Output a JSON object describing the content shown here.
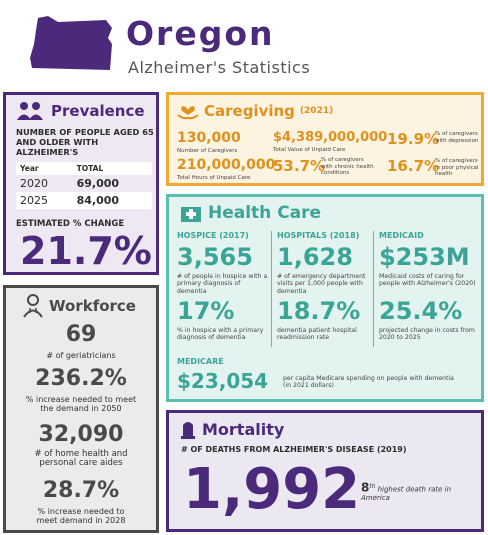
{
  "header": {
    "title": "Oregon",
    "subtitle": "Alzheimer's Statistics",
    "icon": "oregon-state-silhouette",
    "accent": "#4b2a7b"
  },
  "prevalence": {
    "title": "Prevalence",
    "icon": "people-icon",
    "description": "NUMBER OF PEOPLE AGED 65 AND OLDER WITH ALZHEIMER'S",
    "table": {
      "col1": "Year",
      "col2": "TOTAL",
      "rows": [
        {
          "year": "2020",
          "total": "69,000"
        },
        {
          "year": "2025",
          "total": "84,000"
        }
      ]
    },
    "change_label": "ESTIMATED % CHANGE",
    "change_value": "21.7%"
  },
  "workforce": {
    "title": "Workforce",
    "icon": "doctor-icon",
    "items": [
      {
        "value": "69",
        "label": "# of geriatricians"
      },
      {
        "value": "236.2%",
        "label": "% increase needed to meet the demand in 2050"
      },
      {
        "value": "32,090",
        "label": "# of home health and personal care aides"
      },
      {
        "value": "28.7%",
        "label": "% increase needed to meet demand in 2028"
      }
    ]
  },
  "caregiving": {
    "title": "Caregiving",
    "year": "(2021)",
    "icon": "hands-heart-icon",
    "accent": "#f0a833",
    "caregivers": {
      "value": "130,000",
      "label": "Number of Caregivers"
    },
    "hours": {
      "value": "210,000,000",
      "label": "Total Hours of Unpaid Care"
    },
    "unpaid_value": {
      "value": "$4,389,000,000",
      "label": "Total Value of Unpaid Care"
    },
    "chronic": {
      "value": "53.7%",
      "label": "% of caregivers with chronic health conditions"
    },
    "depression": {
      "value": "19.9%",
      "label": "% of caregivers with depression"
    },
    "physical": {
      "value": "16.7%",
      "label": "% of caregivers in poor physical health"
    }
  },
  "healthcare": {
    "title": "Health Care",
    "icon": "hospital-icon",
    "accent": "#5bbfb0",
    "hospice": {
      "title": "HOSPICE (2017)",
      "value1": "3,565",
      "label1": "# of people in hospice with a primary diagnosis of dementia",
      "value2": "17%",
      "label2": "% in hospice with a primary diagnosis of dementia"
    },
    "hospitals": {
      "title": "HOSPITALS (2018)",
      "value1": "1,628",
      "label1": "# of emergency department visits per 1,000 people with dementia",
      "value2": "18.7%",
      "label2": "dementia patient hospital readmission rate"
    },
    "medicaid": {
      "title": "MEDICAID",
      "value1": "$253M",
      "label1": "Medicaid costs of caring for people with Alzheimer's (2020)",
      "value2": "25.4%",
      "label2": "projected change in costs from 2020 to 2025"
    },
    "medicare": {
      "title": "MEDICARE",
      "value": "$23,054",
      "label": "per capita Medicare spending on people with dementia (in 2021 dollars)"
    }
  },
  "mortality": {
    "title": "Mortality",
    "icon": "gravestone-icon",
    "description": "# OF DEATHS FROM ALZHEIMER'S DISEASE (2019)",
    "value": "1,992",
    "rank_number": "8",
    "rank_suffix": "th",
    "rank_label": "highest death rate in America"
  }
}
